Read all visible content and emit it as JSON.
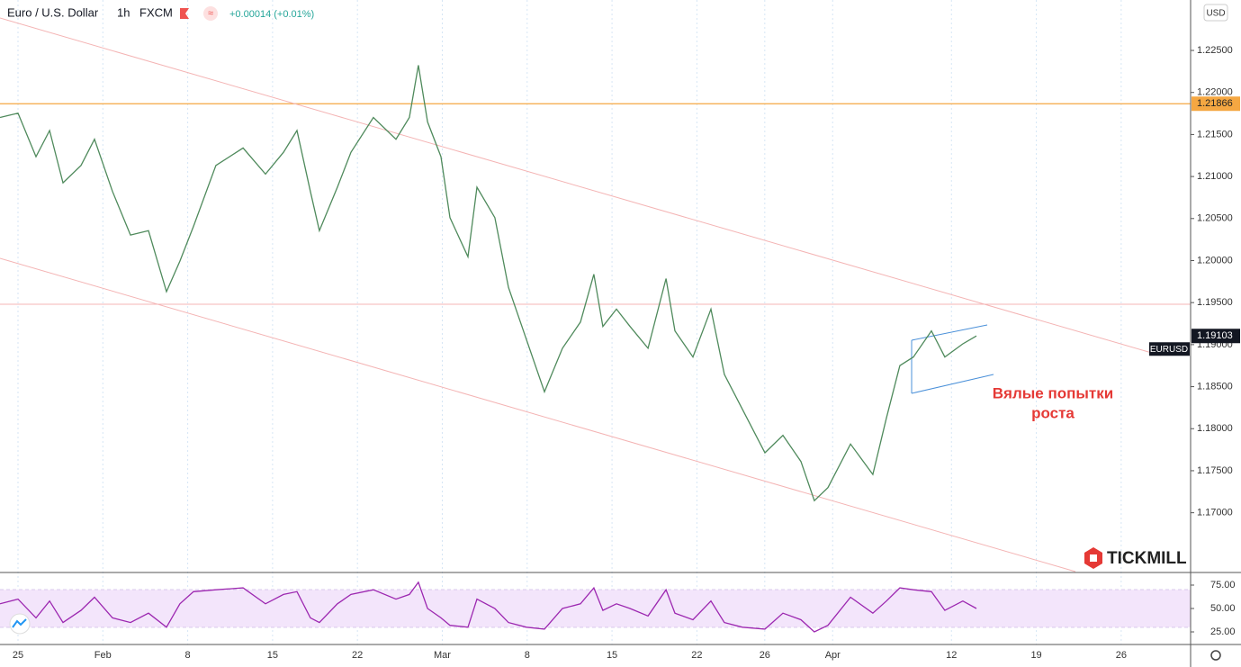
{
  "header": {
    "symbol": "Euro / U.S. Dollar",
    "interval": "1h",
    "source": "FXCM",
    "change": "+0.00014 (+0.01%)",
    "currency": "USD"
  },
  "annotation": [
    "Вялые попытки",
    "роста"
  ],
  "logo": "TICKMILL",
  "chart_data": [
    {
      "type": "line",
      "x": [
        -1.06,
        0,
        1.06,
        1.86,
        2.65,
        3.71,
        4.51,
        5.57,
        6.63,
        7.69,
        8.75,
        9.54,
        10.34,
        11.66,
        13.26,
        14.58,
        15.64,
        16.44,
        17.23,
        17.76,
        18.82,
        19.62,
        20.94,
        22.27,
        23.06,
        23.59,
        24.13,
        24.92,
        25.45,
        26.51,
        27.04,
        28.1,
        28.9,
        29.96,
        31.02,
        32.08,
        33.14,
        33.93,
        34.46,
        35.26,
        36.06,
        37.12,
        38.18,
        38.71,
        39.77,
        40.83,
        41.62,
        42.68,
        44.01,
        45.07,
        46.13,
        46.92,
        47.72,
        49.05,
        50.37,
        51.17,
        51.96,
        52.76,
        53.82,
        54.61,
        55.67,
        56.47
      ],
      "series": [
        {
          "name": "EURUSD",
          "color": "#4f8a5c",
          "values": [
            1.21702,
            1.21754,
            1.21236,
            1.21547,
            1.20925,
            1.21132,
            1.21443,
            1.20822,
            1.20304,
            1.20355,
            1.1963,
            1.19993,
            1.20407,
            1.21132,
            1.2134,
            1.21029,
            1.21288,
            1.21547,
            1.20822,
            1.20355,
            1.20873,
            1.21288,
            1.21702,
            1.21443,
            1.21702,
            1.22324,
            1.2165,
            1.21236,
            1.20511,
            1.20045,
            1.20873,
            1.20511,
            1.19682,
            1.1906,
            1.18439,
            1.18957,
            1.19268,
            1.19837,
            1.19216,
            1.19423,
            1.19216,
            1.18957,
            1.19786,
            1.19164,
            1.18853,
            1.19423,
            1.18646,
            1.18232,
            1.17714,
            1.17921,
            1.1761,
            1.17144,
            1.17299,
            1.17817,
            1.17455,
            1.18128,
            1.1875,
            1.18853,
            1.19164,
            1.18853,
            1.19009,
            1.19103
          ]
        }
      ],
      "hlines": [
        {
          "value": 1.21866,
          "color": "#f5a742"
        }
      ],
      "xlim": [
        -1.06,
        69.09
      ],
      "xticks": [
        {
          "value": 0,
          "label": "25"
        },
        {
          "value": 5,
          "label": "Feb"
        },
        {
          "value": 10,
          "label": "8"
        },
        {
          "value": 15,
          "label": "15"
        },
        {
          "value": 20,
          "label": "22"
        },
        {
          "value": 25,
          "label": "Mar"
        },
        {
          "value": 30,
          "label": "8"
        },
        {
          "value": 35,
          "label": "15"
        },
        {
          "value": 40,
          "label": "22"
        },
        {
          "value": 44,
          "label": "26"
        },
        {
          "value": 48,
          "label": "Apr"
        },
        {
          "value": 55,
          "label": "12"
        },
        {
          "value": 60,
          "label": "19"
        },
        {
          "value": 65,
          "label": "26"
        }
      ],
      "ylim": [
        1.163,
        1.231
      ],
      "yticks": [
        {
          "value": 1.17,
          "label": "1.17000"
        },
        {
          "value": 1.175,
          "label": "1.17500"
        },
        {
          "value": 1.18,
          "label": "1.18000"
        },
        {
          "value": 1.185,
          "label": "1.18500"
        },
        {
          "value": 1.19,
          "label": "1.19000"
        },
        {
          "value": 1.195,
          "label": "1.19500"
        },
        {
          "value": 1.2,
          "label": "1.20000"
        },
        {
          "value": 1.205,
          "label": "1.20500"
        },
        {
          "value": 1.21,
          "label": "1.21000"
        },
        {
          "value": 1.215,
          "label": "1.21500"
        },
        {
          "value": 1.22,
          "label": "1.22000"
        },
        {
          "value": 1.225,
          "label": "1.22500"
        }
      ],
      "grid": true
    },
    {
      "type": "line",
      "series": [
        {
          "color": "#9c27b0",
          "values": [
            55,
            60,
            40,
            58,
            35,
            48,
            62,
            40,
            35,
            45,
            30,
            55,
            68,
            70,
            72,
            55,
            65,
            68,
            40,
            35,
            55,
            65,
            70,
            60,
            65,
            78,
            50,
            40,
            32,
            30,
            60,
            50,
            35,
            30,
            28,
            50,
            55,
            72,
            48,
            55,
            50,
            42,
            70,
            45,
            38,
            58,
            35,
            30,
            28,
            45,
            38,
            25,
            32,
            62,
            45,
            58,
            72,
            70,
            68,
            48,
            58,
            50
          ]
        }
      ],
      "band": [
        30,
        70
      ],
      "ylim": [
        12.5,
        87.5
      ],
      "yticks": [
        {
          "value": 25,
          "label": "25.00"
        },
        {
          "value": 50,
          "label": "50.00"
        },
        {
          "value": 75,
          "label": "75.00"
        }
      ]
    }
  ]
}
